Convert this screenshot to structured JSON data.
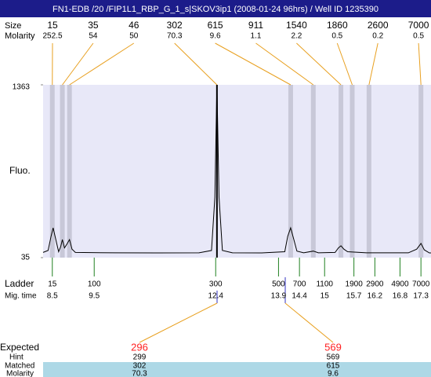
{
  "title": "FN1-EDB /20 /FIP1L1_RBP_G_1_s|SKOV3ip1 (2008-01-24 96hrs) / Well ID 1235390",
  "labels": {
    "size": "Size",
    "molarity": "Molarity",
    "fluo": "Fluo.",
    "ladder": "Ladder",
    "mig_time": "Mig. time",
    "expected": "Expected",
    "hint": "Hint",
    "matched": "Matched",
    "matched_molarity": "Molarity"
  },
  "peaks": [
    {
      "size": 15,
      "molarity": 252.5,
      "time": 8.5,
      "color": "#c8c8d8"
    },
    {
      "size": 35,
      "molarity": 54,
      "time": 8.74,
      "color": "#c8c8d8"
    },
    {
      "size": 46,
      "molarity": 50,
      "time": 8.91,
      "color": "#c8c8d8"
    },
    {
      "size": 302,
      "molarity": 70.3,
      "time": 12.43,
      "color": "#000000"
    },
    {
      "size": 615,
      "molarity": 9.6,
      "time": 14.19,
      "color": "#c8c8d8"
    },
    {
      "size": 911,
      "molarity": 1.1,
      "time": 14.73,
      "color": "#c8c8d8"
    },
    {
      "size": 1540,
      "molarity": 2.2,
      "time": 15.39,
      "color": "#c8c8d8"
    },
    {
      "size": 1860,
      "molarity": 0.5,
      "time": 15.66,
      "color": "#c8c8d8"
    },
    {
      "size": 2600,
      "molarity": 0.2,
      "time": 16.06,
      "color": "#c8c8d8"
    },
    {
      "size": 7000,
      "molarity": 0.5,
      "time": 17.3,
      "color": "#c8c8d8"
    }
  ],
  "time_axis": {
    "xlim": [
      8.28,
      17.54
    ]
  },
  "fluo_axis": {
    "ylim": [
      35,
      1363
    ],
    "yticks": [
      35,
      1363
    ]
  },
  "trace": {
    "time": [
      8.28,
      8.4,
      8.47,
      8.52,
      8.58,
      8.65,
      8.7,
      8.74,
      8.79,
      8.85,
      8.91,
      8.97,
      9.05,
      10,
      11,
      12,
      12.3,
      12.38,
      12.43,
      12.48,
      12.56,
      12.8,
      13.5,
      14.05,
      14.12,
      14.19,
      14.26,
      14.34,
      14.5,
      14.73,
      14.85,
      15.25,
      15.33,
      15.39,
      15.46,
      15.55,
      16,
      17,
      17.2,
      17.3,
      17.38,
      17.5,
      17.54
    ],
    "fluo": [
      75,
      90,
      200,
      264,
      180,
      80,
      120,
      174,
      110,
      140,
      174,
      100,
      75,
      72,
      71,
      72,
      90,
      500,
      1363,
      500,
      90,
      72,
      71,
      80,
      200,
      264,
      180,
      85,
      72,
      85,
      72,
      75,
      110,
      126,
      100,
      80,
      72,
      72,
      100,
      144,
      95,
      71,
      71
    ]
  },
  "ladder": {
    "sizes": [
      15,
      100,
      300,
      500,
      700,
      1100,
      1900,
      2900,
      4900,
      7000
    ],
    "times": [
      8.5,
      9.5,
      12.4,
      13.9,
      14.4,
      15,
      15.7,
      16.2,
      16.8,
      17.3
    ]
  },
  "expected": {
    "expected": [
      296,
      569
    ],
    "hint": [
      299,
      569
    ],
    "matched": [
      302,
      615
    ],
    "molarity": [
      70.3,
      9.6
    ]
  }
}
